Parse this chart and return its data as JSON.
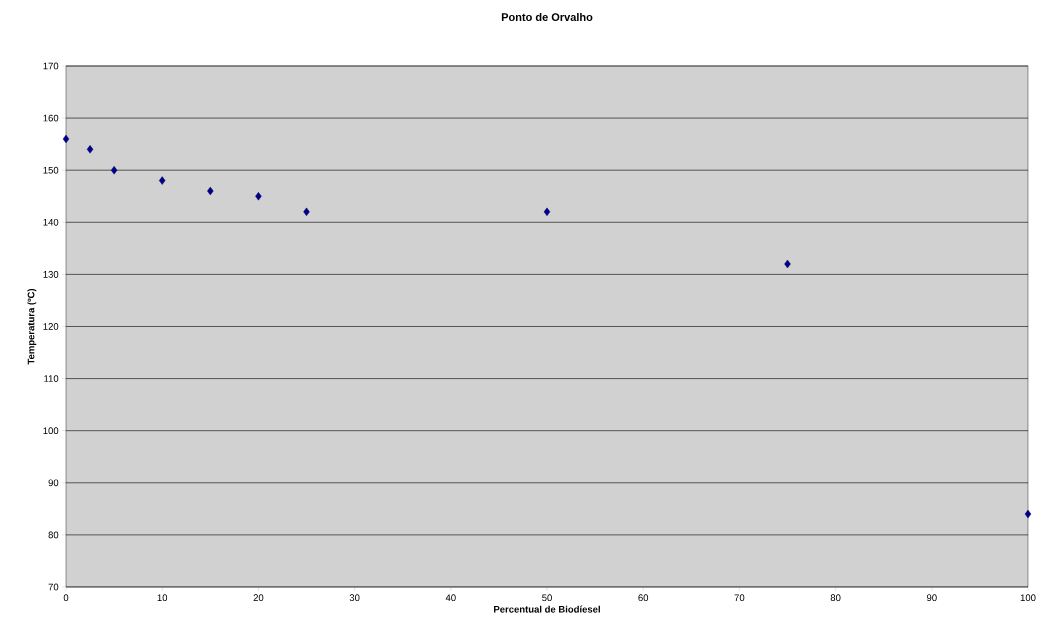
{
  "chart_data": {
    "type": "scatter",
    "title": "Ponto de Orvalho",
    "xlabel": "Percentual de Biodíesel",
    "ylabel": "Temperatura (ºC)",
    "x": [
      0,
      2.5,
      5,
      10,
      15,
      20,
      25,
      50,
      75,
      100
    ],
    "series": [
      {
        "color": "#000080",
        "values": [
          156,
          154,
          150,
          148,
          146,
          145,
          142,
          142,
          132,
          84
        ]
      }
    ],
    "xlim": [
      0,
      100
    ],
    "xticks": [
      0,
      10,
      20,
      30,
      40,
      50,
      60,
      70,
      80,
      90,
      100
    ],
    "ylim": [
      70,
      170
    ],
    "yticks": [
      70,
      80,
      90,
      100,
      110,
      120,
      130,
      140,
      150,
      160,
      170
    ],
    "grid": "y",
    "marker": "diamond"
  }
}
